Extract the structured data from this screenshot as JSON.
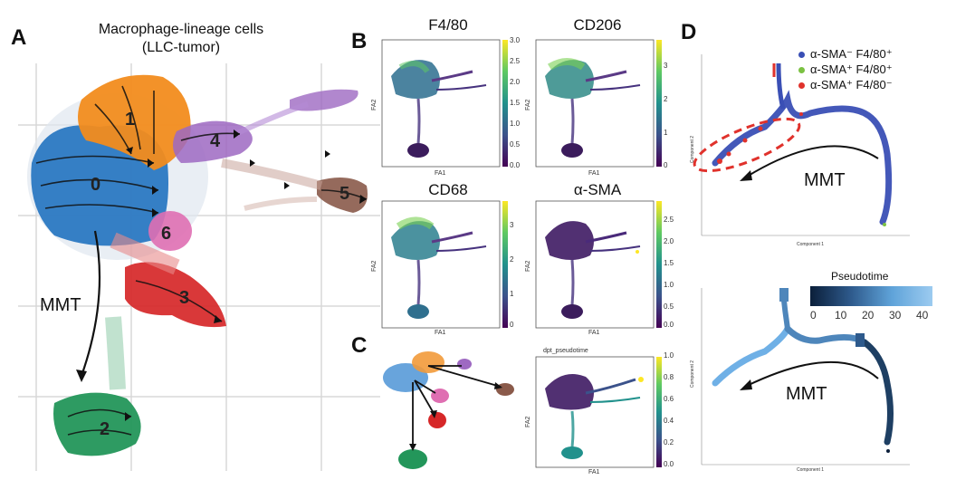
{
  "panel_labels": {
    "a": "A",
    "b": "B",
    "c": "C",
    "d": "D"
  },
  "panel_a": {
    "title_line1": "Macrophage-lineage cells",
    "title_line2": "(LLC-tumor)",
    "clusters": [
      {
        "id": "0",
        "color": "#2b78c2"
      },
      {
        "id": "1",
        "color": "#f28c1e"
      },
      {
        "id": "2",
        "color": "#23965a"
      },
      {
        "id": "3",
        "color": "#d62728"
      },
      {
        "id": "4",
        "color": "#9e69c2"
      },
      {
        "id": "5",
        "color": "#8a5a4a"
      },
      {
        "id": "6",
        "color": "#df6fb2"
      }
    ],
    "arrow_label": "MMT"
  },
  "panel_b": {
    "plots": [
      {
        "title": "F4/80",
        "xlabel": "FA1",
        "ylabel": "FA2",
        "colorbar_ticks": [
          "3.0",
          "2.5",
          "2.0",
          "1.5",
          "1.0",
          "0.5",
          "0.0"
        ]
      },
      {
        "title": "CD206",
        "xlabel": "FA1",
        "ylabel": "FA2",
        "colorbar_ticks": [
          "3",
          "2",
          "1",
          "0"
        ]
      },
      {
        "title": "CD68",
        "xlabel": "FA1",
        "ylabel": "FA2",
        "colorbar_ticks": [
          "3",
          "2",
          "1",
          "0"
        ]
      },
      {
        "title": "α-SMA",
        "xlabel": "FA1",
        "ylabel": "FA2",
        "colorbar_ticks": [
          "2.5",
          "2.0",
          "1.5",
          "1.0",
          "0.5",
          "0.0"
        ]
      }
    ]
  },
  "panel_c": {
    "plot_title": "dpt_pseudotime",
    "xlabel": "FA1",
    "ylabel": "FA2",
    "colorbar_ticks": [
      "1.0",
      "0.8",
      "0.6",
      "0.4",
      "0.2",
      "0.0"
    ]
  },
  "panel_d": {
    "legend": [
      {
        "text": "α-SMA⁻ F4/80⁺",
        "color": "#3a4fb5"
      },
      {
        "text": "α-SMA⁺ F4/80⁺",
        "color": "#7bc142"
      },
      {
        "text": "α-SMA⁺ F4/80⁻",
        "color": "#e0322c"
      }
    ],
    "top_arrow_label": "MMT",
    "bottom_arrow_label": "MMT",
    "xlabel": "Component 1",
    "ylabel": "Component 2",
    "pseudotime_title": "Pseudotime",
    "pseudotime_ticks": [
      "0",
      "10",
      "20",
      "30",
      "40"
    ]
  }
}
